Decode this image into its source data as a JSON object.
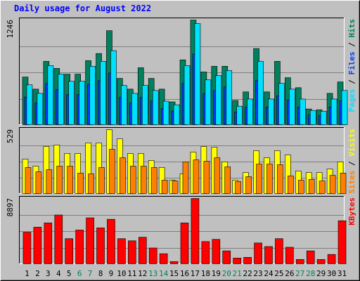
{
  "chart_data": [
    {
      "type": "bar",
      "title": "Daily usage for August 2022",
      "ylim": [
        0,
        1246
      ],
      "yticks": [
        1246
      ],
      "legend_separator": " / ",
      "series": [
        {
          "name": "Hits",
          "color": "#00805c",
          "values": [
            572,
            429,
            758,
            674,
            606,
            606,
            766,
            850,
            1120,
            556,
            429,
            682,
            556,
            429,
            278,
            775,
            1246,
            632,
            699,
            699,
            295,
            396,
            909,
            396,
            758,
            564,
            446,
            194,
            185,
            379,
            514
          ]
        },
        {
          "name": "Files",
          "color": "#0040ff",
          "values": [
            336,
            265,
            495,
            424,
            365,
            365,
            489,
            531,
            619,
            330,
            265,
            330,
            289,
            200,
            171,
            495,
            843,
            377,
            412,
            454,
            159,
            218,
            531,
            218,
            348,
            300,
            218,
            124,
            118,
            218,
            289
          ]
        },
        {
          "name": "Pages",
          "color": "#00e0ff",
          "values": [
            480,
            379,
            707,
            606,
            522,
            522,
            699,
            758,
            884,
            472,
            379,
            472,
            413,
            286,
            244,
            707,
            1204,
            539,
            589,
            648,
            227,
            312,
            758,
            312,
            497,
            429,
            312,
            177,
            168,
            312,
            413
          ]
        }
      ]
    },
    {
      "type": "bar",
      "ylim": [
        0,
        529
      ],
      "yticks": [
        529
      ],
      "legend_separator": " / ",
      "series": [
        {
          "name": "Visits",
          "color": "#ffff00",
          "values": [
            288,
            230,
            391,
            403,
            334,
            334,
            420,
            420,
            529,
            454,
            334,
            334,
            276,
            219,
            115,
            167,
            345,
            391,
            385,
            265,
            115,
            178,
            357,
            299,
            357,
            322,
            190,
            178,
            178,
            207,
            265
          ]
        },
        {
          "name": "Sites",
          "color": "#ff8000",
          "values": [
            219,
            184,
            201,
            230,
            230,
            173,
            167,
            219,
            368,
            299,
            230,
            230,
            219,
            115,
            109,
            265,
            282,
            270,
            299,
            224,
            104,
            144,
            247,
            247,
            242,
            150,
            115,
            121,
            109,
            155,
            173
          ]
        }
      ]
    },
    {
      "type": "bar",
      "ylim": [
        0,
        8897
      ],
      "yticks": [
        8897
      ],
      "categories": [
        "1",
        "2",
        "3",
        "4",
        "5",
        "6",
        "7",
        "8",
        "9",
        "10",
        "11",
        "12",
        "13",
        "14",
        "15",
        "16",
        "17",
        "18",
        "19",
        "20",
        "21",
        "22",
        "23",
        "24",
        "25",
        "26",
        "27",
        "28",
        "29",
        "30",
        "31"
      ],
      "category_colors": [
        "#000000",
        "#000000",
        "#000000",
        "#000000",
        "#000000",
        "#00805c",
        "#00805c",
        "#000000",
        "#000000",
        "#000000",
        "#000000",
        "#000000",
        "#00805c",
        "#00805c",
        "#000000",
        "#000000",
        "#000000",
        "#000000",
        "#000000",
        "#00805c",
        "#00805c",
        "#000000",
        "#000000",
        "#000000",
        "#000000",
        "#000000",
        "#00805c",
        "#00805c",
        "#000000",
        "#000000",
        "#000000"
      ],
      "series": [
        {
          "name": "KBytes",
          "color": "#ff0000",
          "values": [
            4352,
            5028,
            5609,
            6672,
            3481,
            4642,
            6286,
            4932,
            6092,
            3481,
            3191,
            3675,
            2224,
            1451,
            387,
            5609,
            8897,
            3094,
            3385,
            1837,
            870,
            967,
            2901,
            2418,
            3481,
            2321,
            677,
            1837,
            677,
            1354,
            5899
          ]
        }
      ]
    }
  ]
}
